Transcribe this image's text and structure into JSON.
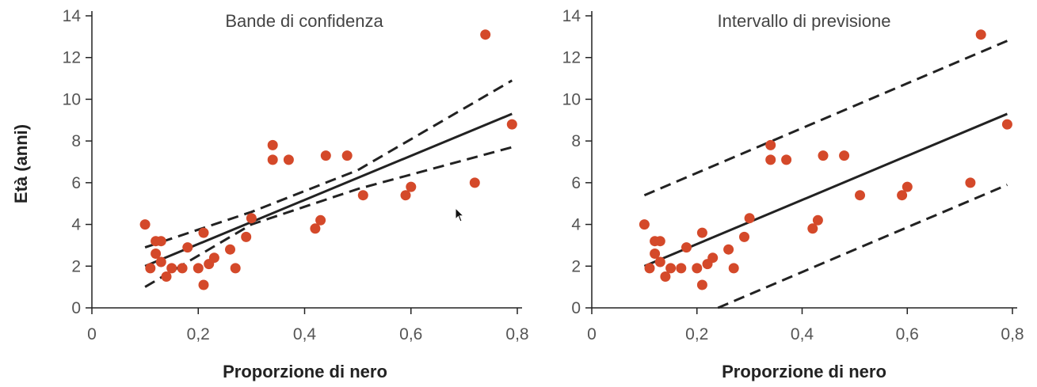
{
  "ylabel": "Età (anni)",
  "colors": {
    "points": "#d4492a",
    "lines": "#222222"
  },
  "chart_data": [
    {
      "type": "scatter",
      "title": "Bande di confidenza",
      "xlabel": "Proporzione di nero",
      "ylabel": "Età (anni)",
      "xlim": [
        0,
        0.8
      ],
      "ylim": [
        0,
        14
      ],
      "x_ticks": [
        "0",
        "0,2",
        "0,4",
        "0,6",
        "0,8"
      ],
      "y_ticks": [
        "0",
        "2",
        "4",
        "6",
        "8",
        "10",
        "12",
        "14"
      ],
      "points": [
        [
          0.1,
          4.0
        ],
        [
          0.11,
          1.9
        ],
        [
          0.12,
          3.2
        ],
        [
          0.12,
          2.6
        ],
        [
          0.13,
          3.2
        ],
        [
          0.13,
          2.2
        ],
        [
          0.14,
          1.5
        ],
        [
          0.15,
          1.9
        ],
        [
          0.17,
          1.9
        ],
        [
          0.18,
          2.9
        ],
        [
          0.2,
          1.9
        ],
        [
          0.21,
          3.6
        ],
        [
          0.21,
          1.1
        ],
        [
          0.22,
          2.1
        ],
        [
          0.23,
          2.4
        ],
        [
          0.26,
          2.8
        ],
        [
          0.27,
          1.9
        ],
        [
          0.29,
          3.4
        ],
        [
          0.3,
          4.3
        ],
        [
          0.34,
          7.8
        ],
        [
          0.34,
          7.1
        ],
        [
          0.37,
          7.1
        ],
        [
          0.42,
          3.8
        ],
        [
          0.43,
          4.2
        ],
        [
          0.44,
          7.3
        ],
        [
          0.48,
          7.3
        ],
        [
          0.51,
          5.4
        ],
        [
          0.59,
          5.4
        ],
        [
          0.6,
          5.8
        ],
        [
          0.72,
          6.0
        ],
        [
          0.74,
          13.1
        ],
        [
          0.79,
          8.8
        ]
      ],
      "fit": {
        "x": [
          0.1,
          0.79
        ],
        "y": [
          2.0,
          9.3
        ]
      },
      "upper_band": {
        "x": [
          0.1,
          0.3,
          0.5,
          0.79
        ],
        "y": [
          2.9,
          4.6,
          6.6,
          10.9
        ]
      },
      "lower_band": {
        "x": [
          0.1,
          0.3,
          0.5,
          0.79
        ],
        "y": [
          1.0,
          4.0,
          5.7,
          7.7
        ]
      }
    },
    {
      "type": "scatter",
      "title": "Intervallo di previsione",
      "xlabel": "Proporzione di nero",
      "xlim": [
        0,
        0.8
      ],
      "ylim": [
        0,
        14
      ],
      "x_ticks": [
        "0",
        "0,2",
        "0,4",
        "0,6",
        "0,8"
      ],
      "y_ticks": [
        "0",
        "2",
        "4",
        "6",
        "8",
        "10",
        "12",
        "14"
      ],
      "points": [
        [
          0.1,
          4.0
        ],
        [
          0.11,
          1.9
        ],
        [
          0.12,
          3.2
        ],
        [
          0.12,
          2.6
        ],
        [
          0.13,
          3.2
        ],
        [
          0.13,
          2.2
        ],
        [
          0.14,
          1.5
        ],
        [
          0.15,
          1.9
        ],
        [
          0.17,
          1.9
        ],
        [
          0.18,
          2.9
        ],
        [
          0.2,
          1.9
        ],
        [
          0.21,
          3.6
        ],
        [
          0.21,
          1.1
        ],
        [
          0.22,
          2.1
        ],
        [
          0.23,
          2.4
        ],
        [
          0.26,
          2.8
        ],
        [
          0.27,
          1.9
        ],
        [
          0.29,
          3.4
        ],
        [
          0.3,
          4.3
        ],
        [
          0.34,
          7.8
        ],
        [
          0.34,
          7.1
        ],
        [
          0.37,
          7.1
        ],
        [
          0.42,
          3.8
        ],
        [
          0.43,
          4.2
        ],
        [
          0.44,
          7.3
        ],
        [
          0.48,
          7.3
        ],
        [
          0.51,
          5.4
        ],
        [
          0.59,
          5.4
        ],
        [
          0.6,
          5.8
        ],
        [
          0.72,
          6.0
        ],
        [
          0.74,
          13.1
        ],
        [
          0.79,
          8.8
        ]
      ],
      "fit": {
        "x": [
          0.1,
          0.79
        ],
        "y": [
          2.0,
          9.3
        ]
      },
      "upper_band": {
        "x": [
          0.1,
          0.79
        ],
        "y": [
          5.4,
          12.8
        ]
      },
      "lower_band": {
        "x": [
          0.24,
          0.79
        ],
        "y": [
          0.0,
          5.9
        ]
      }
    }
  ]
}
